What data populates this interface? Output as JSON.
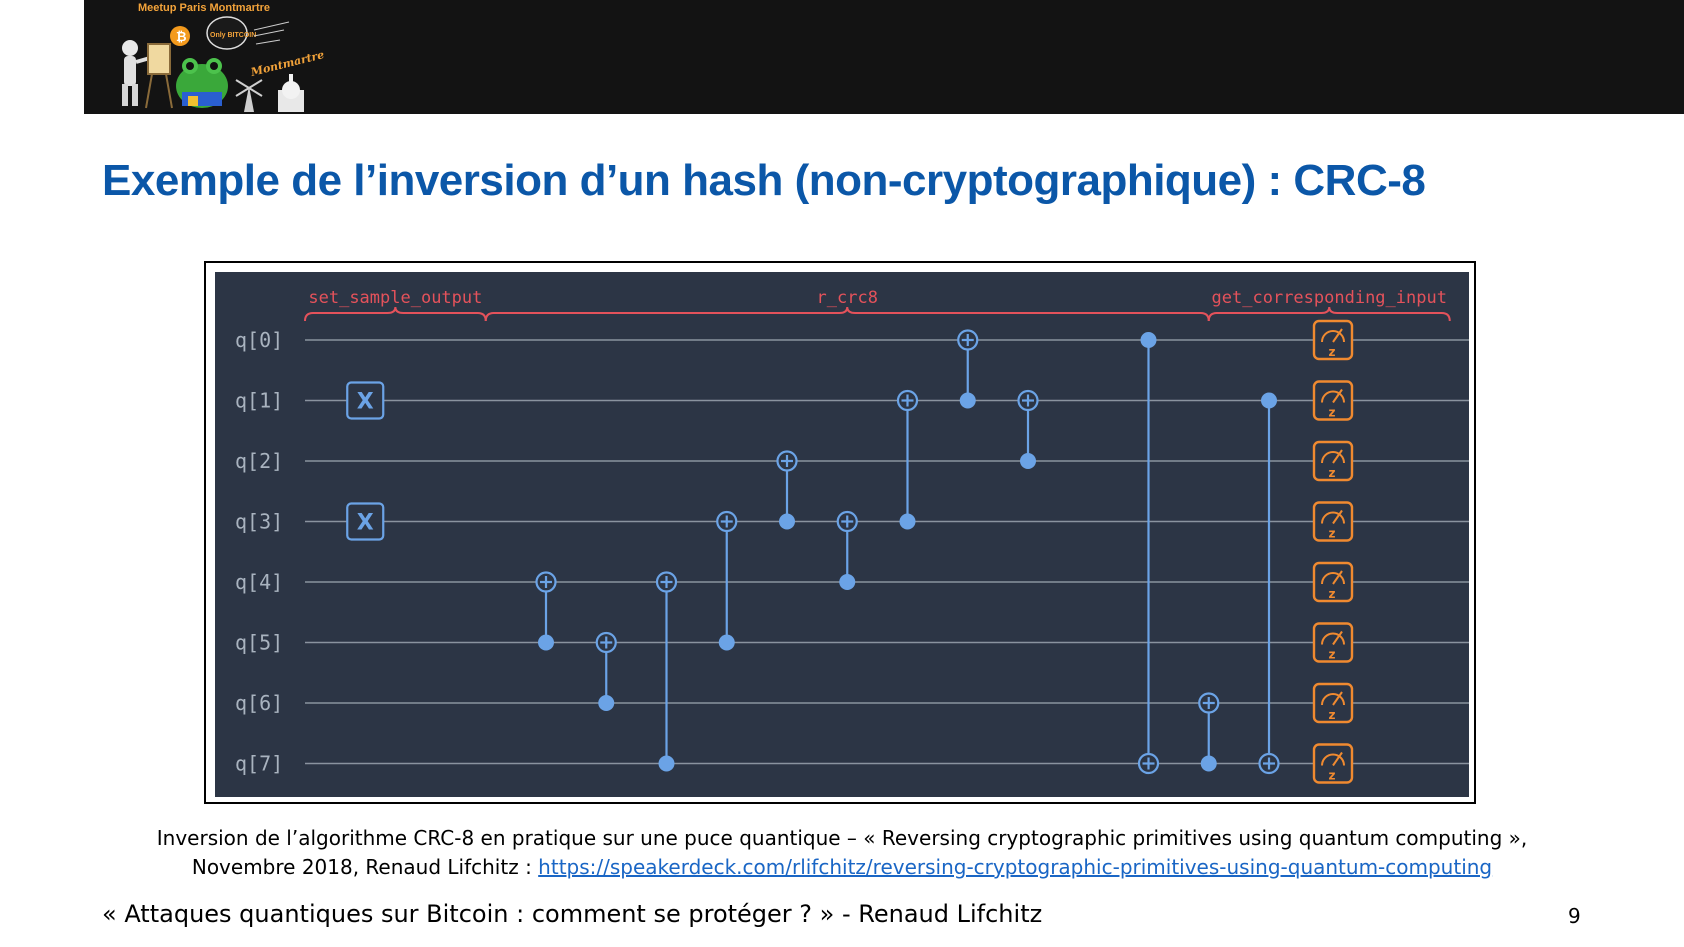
{
  "banner": {
    "logo_text": "Meetup Paris Montmartre",
    "logo_badge": "Only BITCOIN"
  },
  "title": "Exemple de l’inversion d’un hash (non-cryptographique) : CRC-8",
  "circuit": {
    "qubits": [
      "q[0]",
      "q[1]",
      "q[2]",
      "q[3]",
      "q[4]",
      "q[5]",
      "q[6]",
      "q[7]"
    ],
    "sections": [
      {
        "label": "set_sample_output",
        "from_col": 0,
        "to_col": 3
      },
      {
        "label": "r_crc8",
        "from_col": 3,
        "to_col": 15
      },
      {
        "label": "get_corresponding_input",
        "from_col": 15,
        "to_col": 19
      }
    ],
    "x_gates": [
      {
        "qubit": 1,
        "col": 1
      },
      {
        "qubit": 3,
        "col": 1
      }
    ],
    "x_label": "X",
    "cnots": [
      {
        "col": 4,
        "control": 5,
        "target": 4
      },
      {
        "col": 5,
        "control": 6,
        "target": 5
      },
      {
        "col": 6,
        "control": 7,
        "target": 4
      },
      {
        "col": 7,
        "control": 5,
        "target": 3
      },
      {
        "col": 8,
        "control": 3,
        "target": 2
      },
      {
        "col": 9,
        "control": 4,
        "target": 3
      },
      {
        "col": 10,
        "control": 3,
        "target": 1
      },
      {
        "col": 11,
        "control": 1,
        "target": 0
      },
      {
        "col": 12,
        "control": 2,
        "target": 1
      },
      {
        "col": 14,
        "control": 0,
        "target": 7
      },
      {
        "col": 15,
        "control": 7,
        "target": 6
      },
      {
        "col": 16,
        "control": 1,
        "target": 7
      }
    ],
    "measure_col": 19,
    "measure_label": "z",
    "colors": {
      "background": "#2c3545",
      "wire": "#8a939f",
      "gate": "#6ba3e6",
      "measure": "#f08a30",
      "section": "#e4525b"
    }
  },
  "caption": {
    "text": "Inversion de l’algorithme CRC-8 en pratique sur une puce quantique – « Reversing cryptographic primitives using quantum computing », Novembre 2018, Renaud Lifchitz : ",
    "link": "https://speakerdeck.com/rlifchitz/reversing-cryptographic-primitives-using-quantum-computing"
  },
  "footer": {
    "text": "« Attaques quantiques sur Bitcoin : comment se protéger ? » - Renaud Lifchitz",
    "page_number": "9"
  }
}
